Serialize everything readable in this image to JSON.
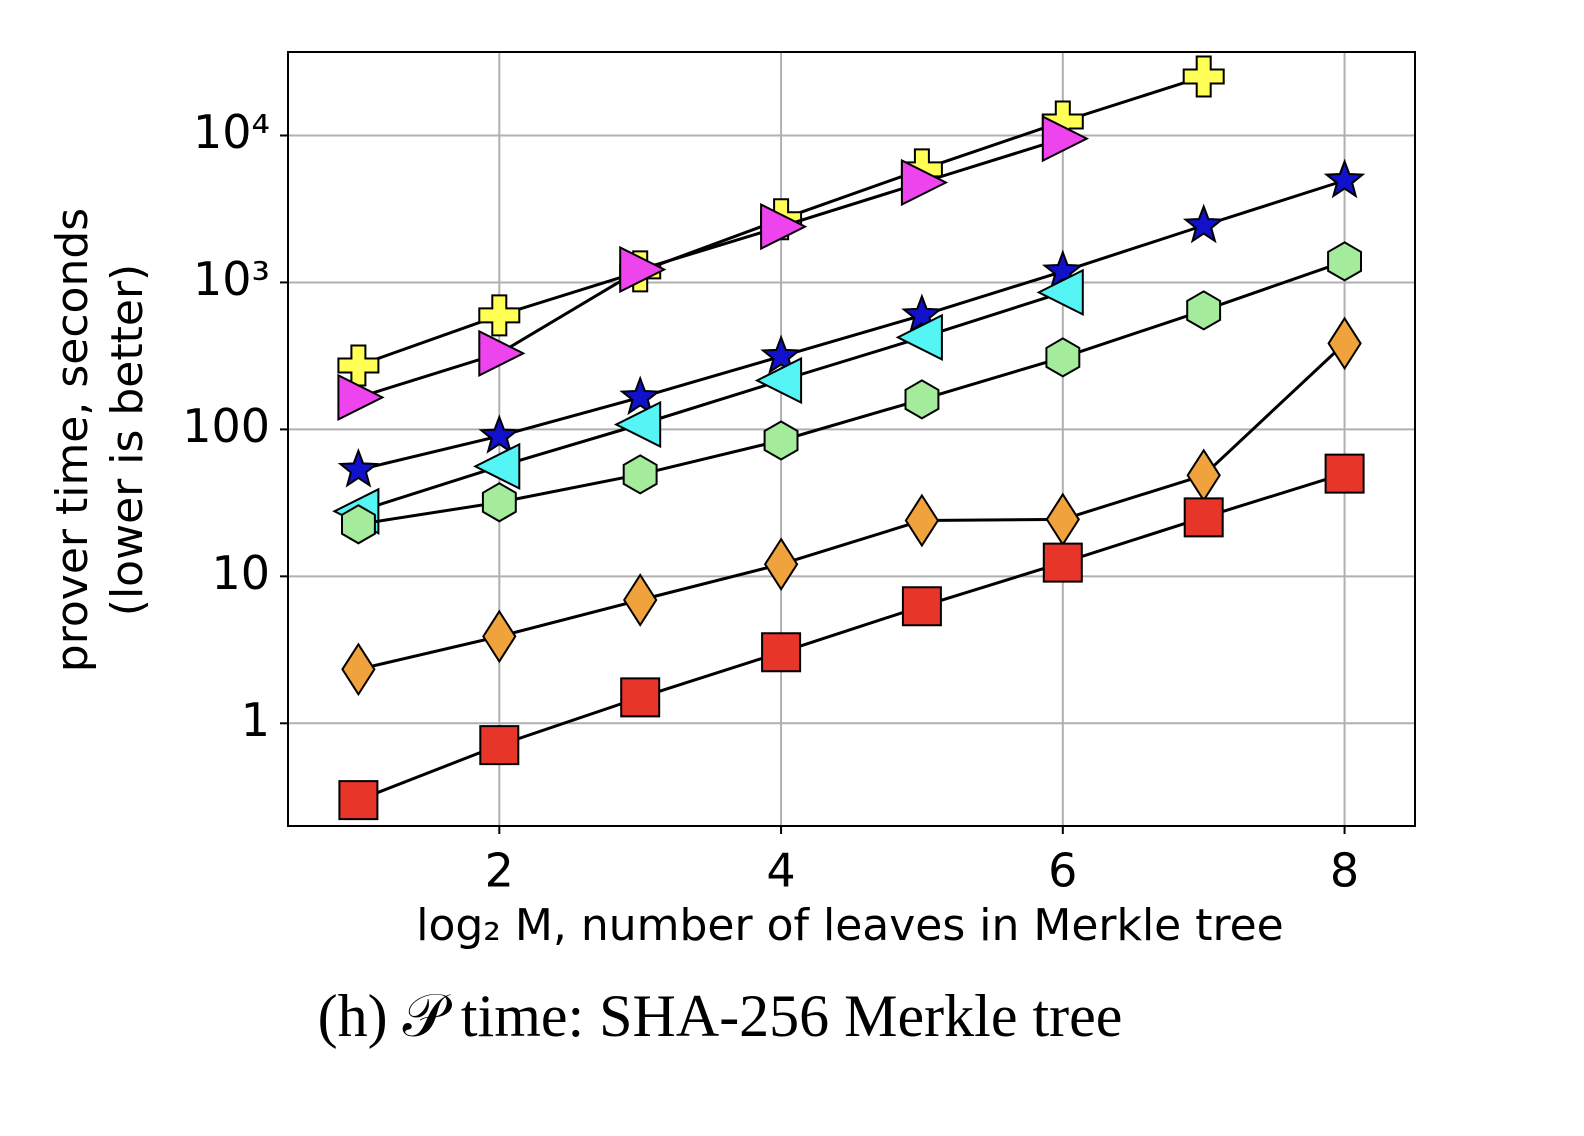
{
  "chart_data": {
    "type": "line",
    "yscale": "log",
    "grid": true,
    "xlabel": "log₂ M, number of leaves in Merkle tree",
    "ylabel": [
      "prover time, seconds",
      "(lower is better)"
    ],
    "caption": "(h) 𝒫 time: SHA-256 Merkle tree",
    "x": [
      1,
      2,
      3,
      4,
      5,
      6,
      7,
      8
    ],
    "xlim": [
      0.5,
      8.5
    ],
    "xticks": [
      2,
      4,
      6,
      8
    ],
    "ylim": [
      0.2,
      37000
    ],
    "yticks": [
      1,
      10,
      100,
      {
        "value": 1000,
        "label": "10³"
      },
      {
        "value": 10000,
        "label": "10⁴"
      }
    ],
    "series": [
      {
        "color": "#ffff55",
        "marker": "plus",
        "values": [
          272,
          597,
          1188,
          2690,
          5880,
          12450,
          25200,
          null
        ]
      },
      {
        "color": "#ee44ee",
        "marker": "triangle-right",
        "values": [
          165,
          329,
          1225,
          2400,
          4790,
          9530,
          null,
          null
        ]
      },
      {
        "color": "#1111cc",
        "marker": "star",
        "values": [
          53,
          90,
          165,
          314,
          597,
          1188,
          2440,
          4940
        ]
      },
      {
        "color": "#55f5f5",
        "marker": "triangle-left",
        "values": [
          27.7,
          56,
          108,
          215,
          423,
          855,
          null,
          null
        ]
      },
      {
        "color": "#a4ec9c",
        "marker": "hexagon",
        "values": [
          22.6,
          31.9,
          49.4,
          84,
          160,
          309,
          645,
          1390
        ]
      },
      {
        "color": "#f0a23c",
        "marker": "diamond",
        "values": [
          2.33,
          3.9,
          6.9,
          12.1,
          24,
          24.4,
          48.7,
          385
        ]
      },
      {
        "color": "#e8352a",
        "marker": "square",
        "values": [
          0.3,
          0.71,
          1.5,
          3.04,
          6.25,
          12.4,
          25.2,
          50
        ]
      }
    ]
  }
}
